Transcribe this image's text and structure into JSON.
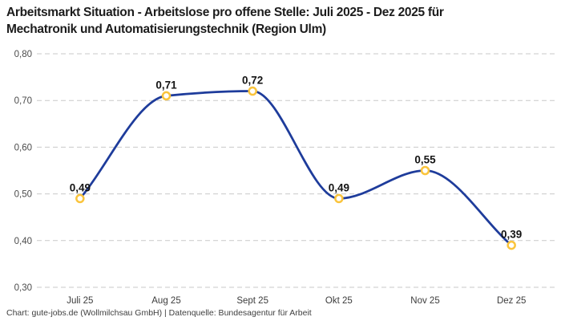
{
  "title": {
    "line1": "Arbeitsmarkt Situation - Arbeitslose pro offene Stelle: Juli 2025 - Dez 2025 für",
    "line2": "Mechatronik und Automatisierungstechnik (Region Ulm)"
  },
  "footer": {
    "text": "Chart: gute-jobs.de (Wollmilchsau GmbH) | Datenquelle: Bundesagentur für Arbeit"
  },
  "chart_data": {
    "type": "line",
    "title": "Arbeitsmarkt Situation - Arbeitslose pro offene Stelle: Juli 2025 - Dez 2025 für Mechatronik und Automatisierungstechnik (Region Ulm)",
    "categories": [
      "Juli 25",
      "Aug 25",
      "Sept 25",
      "Okt 25",
      "Nov 25",
      "Dez 25"
    ],
    "values": [
      0.49,
      0.71,
      0.72,
      0.49,
      0.55,
      0.39
    ],
    "value_labels": [
      "0,49",
      "0,71",
      "0,72",
      "0,49",
      "0,55",
      "0,39"
    ],
    "ylim": [
      0.3,
      0.8
    ],
    "yticks": [
      0.8,
      0.7,
      0.6,
      0.5,
      0.4,
      0.3
    ],
    "ytick_labels": [
      "0,80",
      "0,70",
      "0,60",
      "0,50",
      "0,40",
      "0,30"
    ],
    "xlabel": "",
    "ylabel": "",
    "grid": "horizontal-dashed",
    "legend": "none",
    "curve": "monotone",
    "colors": {
      "line": "#1e3c9b",
      "marker_stroke": "#fac43c",
      "marker_fill": "#ffffff",
      "grid": "#c9c9c9",
      "tick_text": "#4b4b4b",
      "x_text": "#3c3c3c",
      "value_label": "#141414",
      "title_text": "#1c1c1c"
    }
  }
}
